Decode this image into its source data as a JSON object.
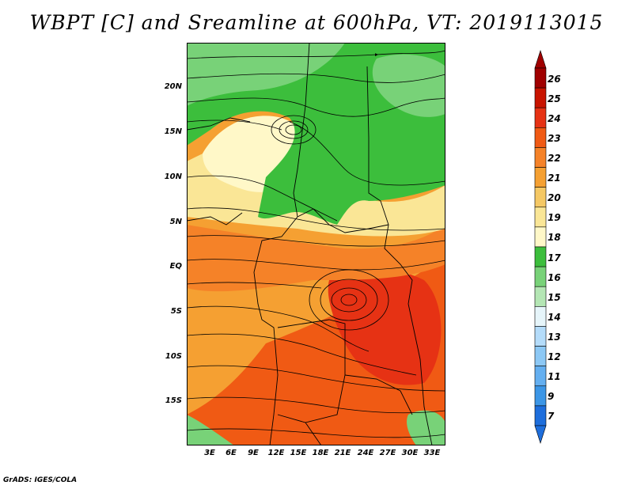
{
  "title": "WBPT [C] and Sreamline at 600hPa, VT: 2019113015",
  "credit": "GrADS: IGES/COLA",
  "lat_labels": [
    "20N",
    "15N",
    "10N",
    "5N",
    "EQ",
    "5S",
    "10S",
    "15S"
  ],
  "lon_labels": [
    "3E",
    "6E",
    "9E",
    "12E",
    "15E",
    "18E",
    "21E",
    "24E",
    "27E",
    "30E",
    "33E"
  ],
  "colorbar": {
    "labels": [
      "26",
      "25",
      "24",
      "23",
      "22",
      "21",
      "20",
      "19",
      "18",
      "17",
      "16",
      "15",
      "14",
      "13",
      "12",
      "11",
      "9",
      "7"
    ],
    "colors": [
      "#a00000",
      "#c81400",
      "#e63214",
      "#f05a14",
      "#f58228",
      "#f5a032",
      "#f5c864",
      "#fae696",
      "#fff8c8",
      "#3cbe3c",
      "#78d278",
      "#b4e6b4",
      "#e6f5fa",
      "#b4dcfa",
      "#8cc8f5",
      "#64aff0",
      "#3c96e6",
      "#1e6edc"
    ]
  },
  "map": {
    "field": "wet bulb potential temperature",
    "level": "600hPa",
    "valid_time": "2019113015"
  }
}
